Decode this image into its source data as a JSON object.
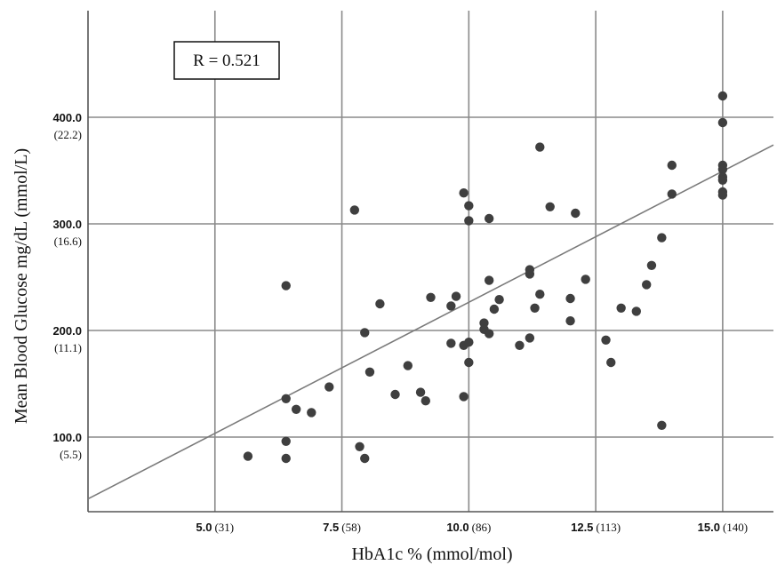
{
  "chart_data": {
    "type": "scatter",
    "xlabel": "HbA1c % (mmol/mol)",
    "ylabel": "Mean Blood Glucose mg/dL (mmol/L)",
    "annotation": "R = 0.521",
    "xlim": [
      2.5,
      16.0
    ],
    "ylim": [
      30,
      500
    ],
    "grid": true,
    "x_ticks": [
      {
        "value": 5.0,
        "main": "5.0",
        "sub": "(31)"
      },
      {
        "value": 7.5,
        "main": "7.5",
        "sub": "(58)"
      },
      {
        "value": 10.0,
        "main": "10.0",
        "sub": "(86)"
      },
      {
        "value": 12.5,
        "main": "12.5",
        "sub": "(113)"
      },
      {
        "value": 15.0,
        "main": "15.0",
        "sub": "(140)"
      }
    ],
    "y_ticks": [
      {
        "value": 100,
        "main": "100.0",
        "sub": "(5.5)"
      },
      {
        "value": 200,
        "main": "200.0",
        "sub": "(11.1)"
      },
      {
        "value": 300,
        "main": "300.0",
        "sub": "(16.6)"
      },
      {
        "value": 400,
        "main": "400.0",
        "sub": "(22.2)"
      }
    ],
    "fit_line": {
      "x": [
        2.5,
        16.0
      ],
      "y": [
        42,
        374
      ]
    },
    "points": [
      {
        "x": 5.65,
        "y": 82
      },
      {
        "x": 6.4,
        "y": 80
      },
      {
        "x": 6.4,
        "y": 96
      },
      {
        "x": 6.4,
        "y": 136
      },
      {
        "x": 6.4,
        "y": 242
      },
      {
        "x": 6.6,
        "y": 126
      },
      {
        "x": 6.9,
        "y": 123
      },
      {
        "x": 7.25,
        "y": 147
      },
      {
        "x": 7.75,
        "y": 313
      },
      {
        "x": 7.85,
        "y": 91
      },
      {
        "x": 7.95,
        "y": 80
      },
      {
        "x": 7.95,
        "y": 198
      },
      {
        "x": 8.05,
        "y": 161
      },
      {
        "x": 8.25,
        "y": 225
      },
      {
        "x": 8.55,
        "y": 140
      },
      {
        "x": 8.8,
        "y": 167
      },
      {
        "x": 9.05,
        "y": 142
      },
      {
        "x": 9.15,
        "y": 134
      },
      {
        "x": 9.25,
        "y": 231
      },
      {
        "x": 9.65,
        "y": 223
      },
      {
        "x": 9.65,
        "y": 188
      },
      {
        "x": 9.75,
        "y": 232
      },
      {
        "x": 9.9,
        "y": 329
      },
      {
        "x": 9.9,
        "y": 138
      },
      {
        "x": 9.9,
        "y": 186
      },
      {
        "x": 10.0,
        "y": 317
      },
      {
        "x": 10.0,
        "y": 303
      },
      {
        "x": 10.0,
        "y": 189
      },
      {
        "x": 10.0,
        "y": 170
      },
      {
        "x": 10.3,
        "y": 207
      },
      {
        "x": 10.3,
        "y": 201
      },
      {
        "x": 10.4,
        "y": 197
      },
      {
        "x": 10.4,
        "y": 247
      },
      {
        "x": 10.4,
        "y": 305
      },
      {
        "x": 10.5,
        "y": 220
      },
      {
        "x": 10.6,
        "y": 229
      },
      {
        "x": 11.0,
        "y": 186
      },
      {
        "x": 11.2,
        "y": 193
      },
      {
        "x": 11.2,
        "y": 257
      },
      {
        "x": 11.2,
        "y": 253
      },
      {
        "x": 11.3,
        "y": 221
      },
      {
        "x": 11.4,
        "y": 234
      },
      {
        "x": 11.4,
        "y": 372
      },
      {
        "x": 11.6,
        "y": 316
      },
      {
        "x": 12.0,
        "y": 230
      },
      {
        "x": 12.0,
        "y": 209
      },
      {
        "x": 12.1,
        "y": 310
      },
      {
        "x": 12.3,
        "y": 248
      },
      {
        "x": 12.7,
        "y": 191
      },
      {
        "x": 12.8,
        "y": 170
      },
      {
        "x": 13.0,
        "y": 221
      },
      {
        "x": 13.3,
        "y": 218
      },
      {
        "x": 13.5,
        "y": 243
      },
      {
        "x": 13.6,
        "y": 261
      },
      {
        "x": 13.8,
        "y": 111
      },
      {
        "x": 13.8,
        "y": 287
      },
      {
        "x": 14.0,
        "y": 328
      },
      {
        "x": 14.0,
        "y": 355
      },
      {
        "x": 15.0,
        "y": 420
      },
      {
        "x": 15.0,
        "y": 395
      },
      {
        "x": 15.0,
        "y": 355
      },
      {
        "x": 15.0,
        "y": 351
      },
      {
        "x": 15.0,
        "y": 344
      },
      {
        "x": 15.0,
        "y": 341
      },
      {
        "x": 15.0,
        "y": 330
      },
      {
        "x": 15.0,
        "y": 327
      }
    ],
    "point_color": "#3f3f3f",
    "line_color": "#7a7a7a"
  }
}
